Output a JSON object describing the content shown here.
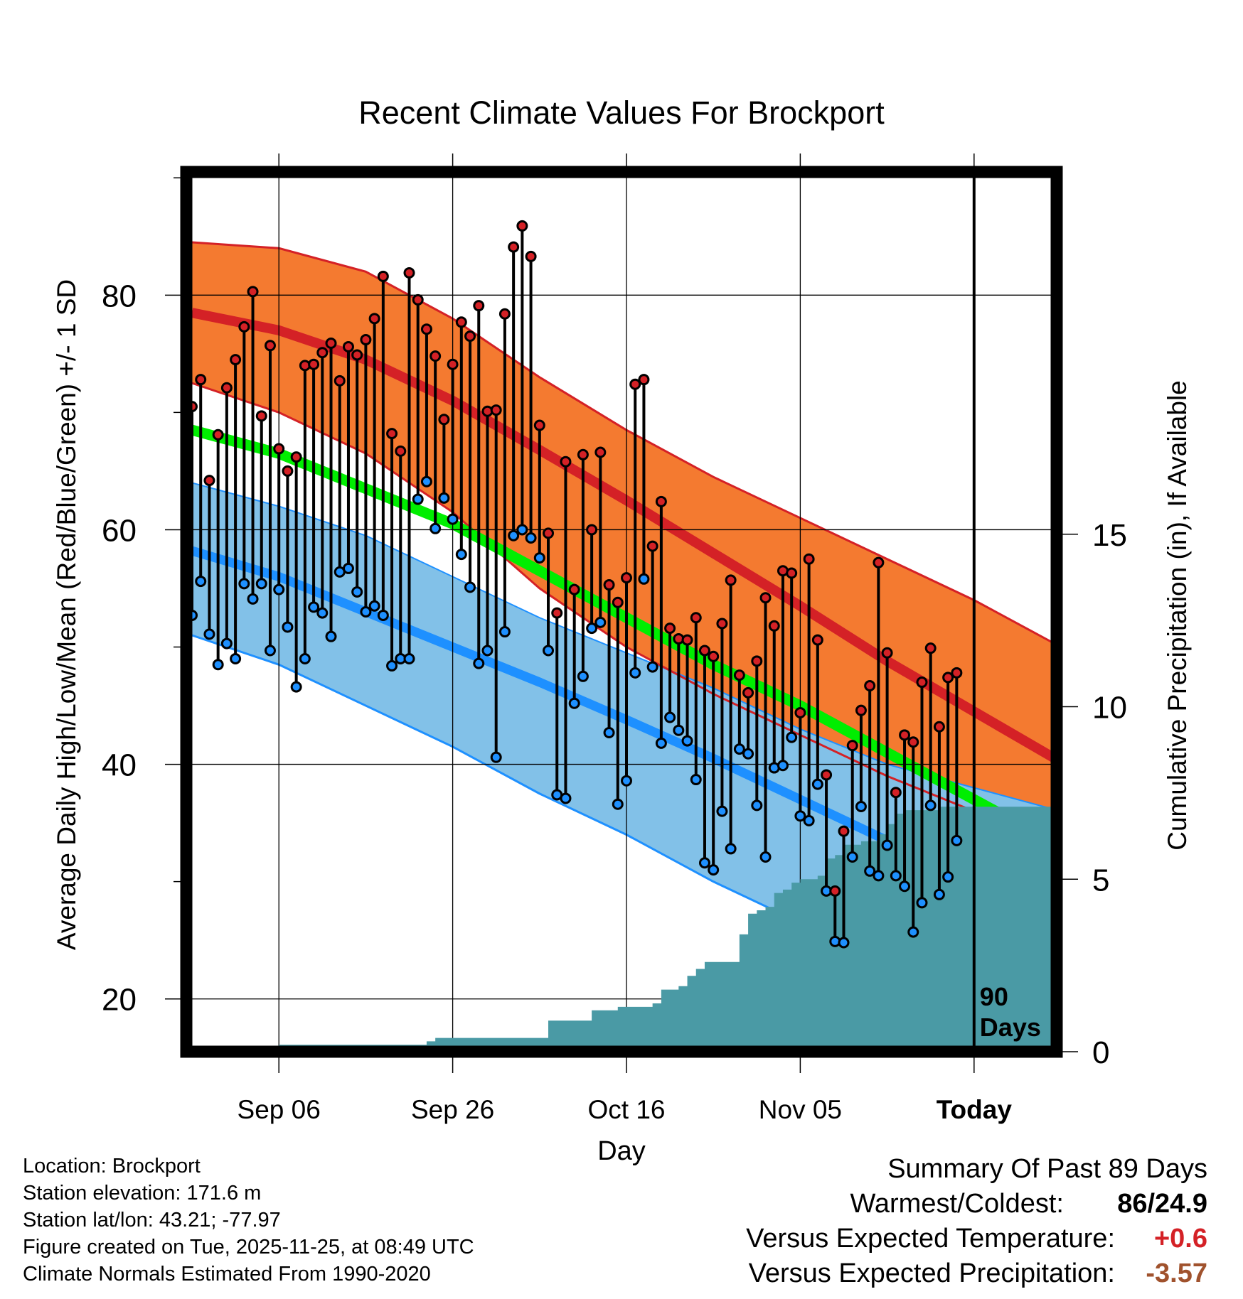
{
  "chart_data": {
    "type": "line",
    "title": "Recent Climate Values For Brockport",
    "xlabel": "Day",
    "ylabel": "Average Daily High/Low/Mean (Red/Blue/Green) +/- 1 SD",
    "y2label": "Cumulative Precipitation (in), If Available",
    "ylim": [
      15.5,
      90.5
    ],
    "y_ticks": [
      20,
      40,
      60,
      80
    ],
    "y2lim": [
      0,
      25.5
    ],
    "y2_ticks": [
      0,
      5,
      10,
      15
    ],
    "xlim": [
      0,
      100
    ],
    "x_ticks": [
      {
        "day": 10,
        "label": "Sep 06"
      },
      {
        "day": 30,
        "label": "Sep 26"
      },
      {
        "day": 50,
        "label": "Oct 16"
      },
      {
        "day": 70,
        "label": "Nov 05"
      },
      {
        "day": 90,
        "label": "Today"
      }
    ],
    "today_day": 90,
    "today_label": "90 Days",
    "normals": {
      "days": [
        0,
        10,
        20,
        30,
        40,
        50,
        60,
        70,
        80,
        90,
        100
      ],
      "high_mean": [
        78.5,
        77.0,
        74.5,
        71.0,
        66.8,
        62.5,
        58.0,
        53.5,
        48.8,
        44.5,
        40.2
      ],
      "high_upper": [
        84.5,
        84.0,
        82.0,
        78.0,
        73.0,
        68.5,
        64.5,
        61.0,
        57.5,
        54.0,
        50.0
      ],
      "high_lower": [
        72.5,
        70.0,
        66.5,
        61.5,
        55.0,
        50.0,
        46.0,
        42.5,
        39.0,
        36.0,
        33.5
      ],
      "low_mean": [
        58.2,
        56.0,
        53.0,
        50.0,
        47.0,
        43.8,
        40.5,
        37.0,
        33.5,
        30.0,
        26.5
      ],
      "low_upper": [
        64.0,
        62.0,
        59.5,
        56.0,
        52.5,
        49.5,
        46.5,
        43.0,
        40.0,
        38.0,
        36.0
      ],
      "low_lower": [
        51.0,
        48.5,
        45.0,
        41.5,
        37.5,
        34.0,
        30.0,
        26.5,
        23.0,
        20.0,
        17.0
      ],
      "mean": [
        68.5,
        66.5,
        63.5,
        60.5,
        56.5,
        52.5,
        48.5,
        45.0,
        41.0,
        37.0,
        33.0
      ]
    },
    "daily_high": [
      70.5,
      72.8,
      64.2,
      68.1,
      72.1,
      74.5,
      77.3,
      80.3,
      69.7,
      75.7,
      66.9,
      65.0,
      66.2,
      74.0,
      74.1,
      75.1,
      75.9,
      72.7,
      75.6,
      74.9,
      76.2,
      78.0,
      81.6,
      68.2,
      66.7,
      81.9,
      79.6,
      77.1,
      74.8,
      69.4,
      74.1,
      77.7,
      76.5,
      79.1,
      70.1,
      70.2,
      78.4,
      84.1,
      85.9,
      83.3,
      68.9,
      59.7,
      52.9,
      65.8,
      54.9,
      66.4,
      60.0,
      66.6,
      55.3,
      53.8,
      55.9,
      72.4,
      72.8,
      58.6,
      62.4,
      51.6,
      50.7,
      50.6,
      52.5,
      49.7,
      49.2,
      52.0,
      55.7,
      47.6,
      46.1,
      48.8,
      54.2,
      51.8,
      56.5,
      56.3,
      44.4,
      57.5,
      50.6,
      39.1,
      29.2,
      34.3,
      41.6,
      44.6,
      46.7,
      57.2,
      49.5,
      37.6,
      42.5,
      41.9,
      47.0,
      49.9,
      43.2,
      47.4,
      47.8
    ],
    "daily_low": [
      52.7,
      55.6,
      51.1,
      48.5,
      50.3,
      49.0,
      55.4,
      54.1,
      55.4,
      49.7,
      54.9,
      51.7,
      46.6,
      49.0,
      53.4,
      52.9,
      50.9,
      56.4,
      56.7,
      54.7,
      53.0,
      53.5,
      52.7,
      48.4,
      49.0,
      49.0,
      62.6,
      64.1,
      60.1,
      62.7,
      60.9,
      57.9,
      55.1,
      48.6,
      49.7,
      40.6,
      51.3,
      59.5,
      60.0,
      59.3,
      57.6,
      49.7,
      37.4,
      37.1,
      45.2,
      47.5,
      51.6,
      52.1,
      42.7,
      36.6,
      38.6,
      47.8,
      55.8,
      48.3,
      41.8,
      44.0,
      42.9,
      42.0,
      38.7,
      31.6,
      31.0,
      36.0,
      32.8,
      41.3,
      40.9,
      36.5,
      32.1,
      39.7,
      39.9,
      42.3,
      35.6,
      35.2,
      38.3,
      29.2,
      24.9,
      24.8,
      32.1,
      36.4,
      30.9,
      30.5,
      33.1,
      30.5,
      29.6,
      25.7,
      28.2,
      36.5,
      28.9,
      30.4,
      33.5
    ],
    "cumulative_precip": [
      [
        0,
        0
      ],
      [
        7,
        0
      ],
      [
        8,
        0.1
      ],
      [
        10,
        0.2
      ],
      [
        25,
        0.2
      ],
      [
        27,
        0.3
      ],
      [
        28,
        0.4
      ],
      [
        40,
        0.4
      ],
      [
        41,
        0.9
      ],
      [
        45,
        0.9
      ],
      [
        46,
        1.2
      ],
      [
        48,
        1.2
      ],
      [
        49,
        1.3
      ],
      [
        52,
        1.3
      ],
      [
        53,
        1.4
      ],
      [
        54,
        1.8
      ],
      [
        55,
        1.8
      ],
      [
        56,
        1.9
      ],
      [
        57,
        2.2
      ],
      [
        58,
        2.4
      ],
      [
        59,
        2.6
      ],
      [
        62,
        2.6
      ],
      [
        63,
        3.4
      ],
      [
        64,
        4.0
      ],
      [
        65,
        4.1
      ],
      [
        66,
        4.2
      ],
      [
        67,
        4.6
      ],
      [
        68,
        4.7
      ],
      [
        69,
        4.9
      ],
      [
        70,
        5.0
      ],
      [
        72,
        5.1
      ],
      [
        73,
        5.6
      ],
      [
        74,
        5.7
      ],
      [
        75,
        6.0
      ],
      [
        77,
        6.1
      ],
      [
        79,
        6.3
      ],
      [
        80,
        6.6
      ],
      [
        81,
        6.9
      ],
      [
        82,
        7.0
      ],
      [
        85,
        7.0
      ],
      [
        86,
        7.1
      ],
      [
        100,
        7.1
      ]
    ]
  },
  "footer": {
    "location": "Location: Brockport",
    "elevation": "Station elevation: 171.6 m",
    "latlon": "Station lat/lon: 43.21; -77.97",
    "created": "Figure created on Tue, 2025-11-25, at 08:49 UTC",
    "normals": "Climate Normals Estimated From 1990-2020"
  },
  "summary": {
    "title": "Summary Of Past 89 Days",
    "warmest_label": "Warmest/Coldest:",
    "warmest_value": "86/24.9",
    "temp_label": "Versus Expected Temperature:",
    "temp_value": "+0.6",
    "precip_label": "Versus Expected Precipitation:",
    "precip_value": "-3.57"
  },
  "colors": {
    "high_band": "#f47a30",
    "high_mean": "#d42126",
    "high_edge": "#d42126",
    "low_band": "#82c1e8",
    "low_mean": "#1e90ff",
    "low_edge": "#1e90ff",
    "mean": "#00ee00",
    "overlap": "#8b1010",
    "precip": "#4a9aa5",
    "high_dot": "#d42126",
    "low_dot": "#1e90ff",
    "temp_value": "#d42126",
    "precip_value": "#a0522d"
  }
}
